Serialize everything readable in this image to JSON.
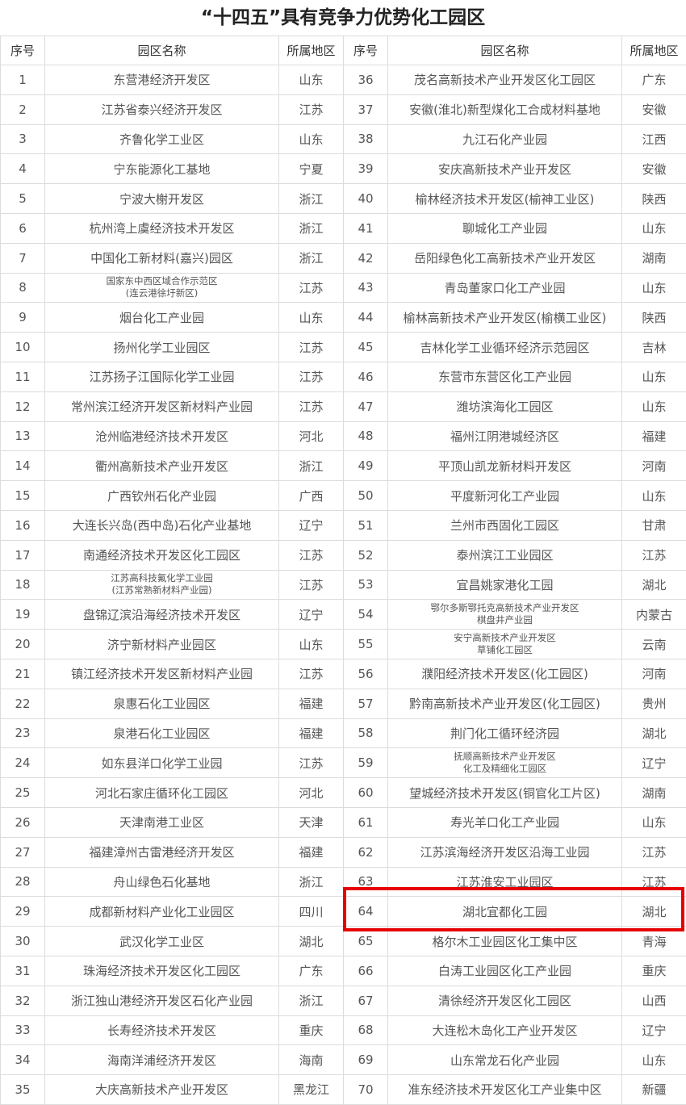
{
  "title": "“十四五”具有竞争力优势化工园区",
  "headers": [
    "序号",
    "园区名称",
    "所属地区",
    "序号",
    "园区名称",
    "所属地区"
  ],
  "highlight_color": "#e60000",
  "highlighted_row": 64,
  "rows": [
    [
      [
        "1",
        "东营港经济开发区",
        "山东"
      ],
      [
        "36",
        "茂名高新技术产业开发区化工园区",
        "广东"
      ]
    ],
    [
      [
        "2",
        "江苏省泰兴经济开发区",
        "江苏"
      ],
      [
        "37",
        "安徽(淮北)新型煤化工合成材料基地",
        "安徽"
      ]
    ],
    [
      [
        "3",
        "齐鲁化学工业区",
        "山东"
      ],
      [
        "38",
        "九江石化产业园",
        "江西"
      ]
    ],
    [
      [
        "4",
        "宁东能源化工基地",
        "宁夏"
      ],
      [
        "39",
        "安庆高新技术产业开发区",
        "安徽"
      ]
    ],
    [
      [
        "5",
        "宁波大榭开发区",
        "浙江"
      ],
      [
        "40",
        "榆林经济技术开发区(榆神工业区)",
        "陕西"
      ]
    ],
    [
      [
        "6",
        "杭州湾上虞经济技术开发区",
        "浙江"
      ],
      [
        "41",
        "聊城化工产业园",
        "山东"
      ]
    ],
    [
      [
        "7",
        "中国化工新材料(嘉兴)园区",
        "浙江"
      ],
      [
        "42",
        "岳阳绿色化工高新技术产业开发区",
        "湖南"
      ]
    ],
    [
      [
        "8",
        "国家东中西区域合作示范区\n(连云港徐圩新区)",
        "江苏"
      ],
      [
        "43",
        "青岛董家口化工产业园",
        "山东"
      ]
    ],
    [
      [
        "9",
        "烟台化工产业园",
        "山东"
      ],
      [
        "44",
        "榆林高新技术产业开发区(榆横工业区)",
        "陕西"
      ]
    ],
    [
      [
        "10",
        "扬州化学工业园区",
        "江苏"
      ],
      [
        "45",
        "吉林化学工业循环经济示范园区",
        "吉林"
      ]
    ],
    [
      [
        "11",
        "江苏扬子江国际化学工业园",
        "江苏"
      ],
      [
        "46",
        "东营市东营区化工产业园",
        "山东"
      ]
    ],
    [
      [
        "12",
        "常州滨江经济开发区新材料产业园",
        "江苏"
      ],
      [
        "47",
        "潍坊滨海化工园区",
        "山东"
      ]
    ],
    [
      [
        "13",
        "沧州临港经济技术开发区",
        "河北"
      ],
      [
        "48",
        "福州江阴港城经济区",
        "福建"
      ]
    ],
    [
      [
        "14",
        "衢州高新技术产业开发区",
        "浙江"
      ],
      [
        "49",
        "平顶山凯龙新材料开发区",
        "河南"
      ]
    ],
    [
      [
        "15",
        "广西钦州石化产业园",
        "广西"
      ],
      [
        "50",
        "平度新河化工产业园",
        "山东"
      ]
    ],
    [
      [
        "16",
        "大连长兴岛(西中岛)石化产业基地",
        "辽宁"
      ],
      [
        "51",
        "兰州市西固化工园区",
        "甘肃"
      ]
    ],
    [
      [
        "17",
        "南通经济技术开发区化工园区",
        "江苏"
      ],
      [
        "52",
        "泰州滨江工业园区",
        "江苏"
      ]
    ],
    [
      [
        "18",
        "江苏高科技氟化学工业园\n(江苏常熟新材料产业园)",
        "江苏"
      ],
      [
        "53",
        "宜昌姚家港化工园",
        "湖北"
      ]
    ],
    [
      [
        "19",
        "盘锦辽滨沿海经济技术开发区",
        "辽宁"
      ],
      [
        "54",
        "鄂尔多斯鄂托克高新技术产业开发区\n棋盘井产业园",
        "内蒙古"
      ]
    ],
    [
      [
        "20",
        "济宁新材料产业园区",
        "山东"
      ],
      [
        "55",
        "安宁高新技术产业开发区\n草铺化工园区",
        "云南"
      ]
    ],
    [
      [
        "21",
        "镇江经济技术开发区新材料产业园",
        "江苏"
      ],
      [
        "56",
        "濮阳经济技术开发区(化工园区)",
        "河南"
      ]
    ],
    [
      [
        "22",
        "泉惠石化工业园区",
        "福建"
      ],
      [
        "57",
        "黔南高新技术产业开发区(化工园区)",
        "贵州"
      ]
    ],
    [
      [
        "23",
        "泉港石化工业园区",
        "福建"
      ],
      [
        "58",
        "荆门化工循环经济园",
        "湖北"
      ]
    ],
    [
      [
        "24",
        "如东县洋口化学工业园",
        "江苏"
      ],
      [
        "59",
        "抚顺高新技术产业开发区\n化工及精细化工园区",
        "辽宁"
      ]
    ],
    [
      [
        "25",
        "河北石家庄循环化工园区",
        "河北"
      ],
      [
        "60",
        "望城经济技术开发区(铜官化工片区)",
        "湖南"
      ]
    ],
    [
      [
        "26",
        "天津南港工业区",
        "天津"
      ],
      [
        "61",
        "寿光羊口化工产业园",
        "山东"
      ]
    ],
    [
      [
        "27",
        "福建漳州古雷港经济开发区",
        "福建"
      ],
      [
        "62",
        "江苏滨海经济开发区沿海工业园",
        "江苏"
      ]
    ],
    [
      [
        "28",
        "舟山绿色石化基地",
        "浙江"
      ],
      [
        "63",
        "江苏淮安工业园区",
        "江苏"
      ]
    ],
    [
      [
        "29",
        "成都新材料产业化工业园区",
        "四川"
      ],
      [
        "64",
        "湖北宜都化工园",
        "湖北"
      ]
    ],
    [
      [
        "30",
        "武汉化学工业区",
        "湖北"
      ],
      [
        "65",
        "格尔木工业园区化工集中区",
        "青海"
      ]
    ],
    [
      [
        "31",
        "珠海经济技术开发区化工园区",
        "广东"
      ],
      [
        "66",
        "白涛工业园区化工产业园",
        "重庆"
      ]
    ],
    [
      [
        "32",
        "浙江独山港经济开发区石化产业园",
        "浙江"
      ],
      [
        "67",
        "清徐经济开发区化工园区",
        "山西"
      ]
    ],
    [
      [
        "33",
        "长寿经济技术开发区",
        "重庆"
      ],
      [
        "68",
        "大连松木岛化工产业开发区",
        "辽宁"
      ]
    ],
    [
      [
        "34",
        "海南洋浦经济开发区",
        "海南"
      ],
      [
        "69",
        "山东常龙石化产业园",
        "山东"
      ]
    ],
    [
      [
        "35",
        "大庆高新技术产业开发区",
        "黑龙江"
      ],
      [
        "70",
        "准东经济技术开发区化工产业集中区",
        "新疆"
      ]
    ]
  ]
}
